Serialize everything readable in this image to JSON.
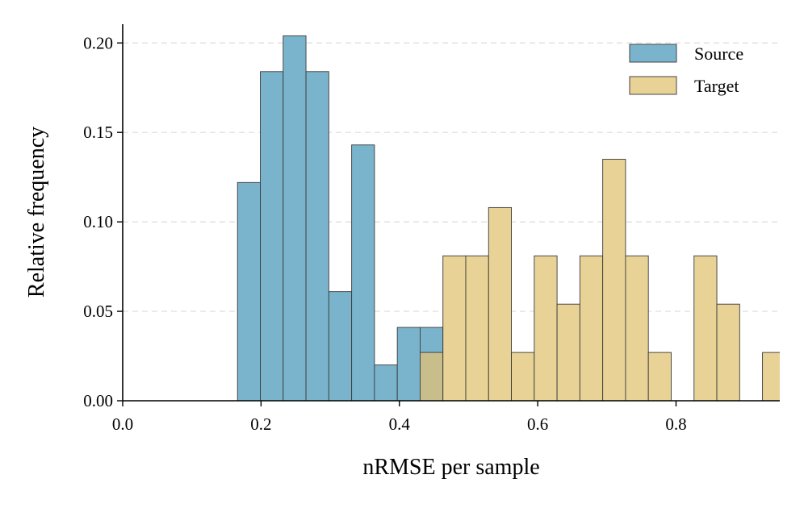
{
  "chart_data": {
    "type": "histogram",
    "title": "",
    "xlabel": "nRMSE per sample",
    "ylabel": "Relative frequency",
    "xlim": [
      0.0,
      0.95
    ],
    "ylim": [
      0.0,
      0.215
    ],
    "xticks": [
      {
        "value": 0.0,
        "label": "0.0"
      },
      {
        "value": 0.2,
        "label": "0.2"
      },
      {
        "value": 0.4,
        "label": "0.4"
      },
      {
        "value": 0.6,
        "label": "0.6"
      },
      {
        "value": 0.8,
        "label": "0.8"
      }
    ],
    "yticks": [
      {
        "value": 0.0,
        "label": "0.00"
      },
      {
        "value": 0.05,
        "label": "0.05"
      },
      {
        "value": 0.1,
        "label": "0.10"
      },
      {
        "value": 0.15,
        "label": "0.15"
      },
      {
        "value": 0.2,
        "label": "0.20"
      }
    ],
    "grid": "y-dashed",
    "legend_position": "top-right",
    "series": [
      {
        "name": "Source",
        "color": "#7ab4cc",
        "bins": [
          {
            "x0": 0.166,
            "x1": 0.199,
            "value": 0.122
          },
          {
            "x0": 0.199,
            "x1": 0.232,
            "value": 0.184
          },
          {
            "x0": 0.232,
            "x1": 0.265,
            "value": 0.204
          },
          {
            "x0": 0.265,
            "x1": 0.298,
            "value": 0.184
          },
          {
            "x0": 0.298,
            "x1": 0.331,
            "value": 0.061
          },
          {
            "x0": 0.331,
            "x1": 0.364,
            "value": 0.143
          },
          {
            "x0": 0.364,
            "x1": 0.397,
            "value": 0.02
          },
          {
            "x0": 0.397,
            "x1": 0.43,
            "value": 0.041
          },
          {
            "x0": 0.43,
            "x1": 0.463,
            "value": 0.041
          }
        ]
      },
      {
        "name": "Target",
        "color": "#e8d296",
        "bins": [
          {
            "x0": 0.43,
            "x1": 0.463,
            "value": 0.027
          },
          {
            "x0": 0.463,
            "x1": 0.496,
            "value": 0.081
          },
          {
            "x0": 0.496,
            "x1": 0.529,
            "value": 0.081
          },
          {
            "x0": 0.529,
            "x1": 0.562,
            "value": 0.108
          },
          {
            "x0": 0.562,
            "x1": 0.595,
            "value": 0.027
          },
          {
            "x0": 0.595,
            "x1": 0.628,
            "value": 0.081
          },
          {
            "x0": 0.628,
            "x1": 0.661,
            "value": 0.054
          },
          {
            "x0": 0.661,
            "x1": 0.694,
            "value": 0.081
          },
          {
            "x0": 0.694,
            "x1": 0.727,
            "value": 0.135
          },
          {
            "x0": 0.727,
            "x1": 0.76,
            "value": 0.081
          },
          {
            "x0": 0.76,
            "x1": 0.793,
            "value": 0.027
          },
          {
            "x0": 0.793,
            "x1": 0.826,
            "value": 0.0
          },
          {
            "x0": 0.826,
            "x1": 0.859,
            "value": 0.081
          },
          {
            "x0": 0.859,
            "x1": 0.892,
            "value": 0.054
          },
          {
            "x0": 0.892,
            "x1": 0.925,
            "value": 0.0
          },
          {
            "x0": 0.925,
            "x1": 0.958,
            "value": 0.027
          }
        ]
      }
    ],
    "overlap_color": "#c8be8c"
  }
}
